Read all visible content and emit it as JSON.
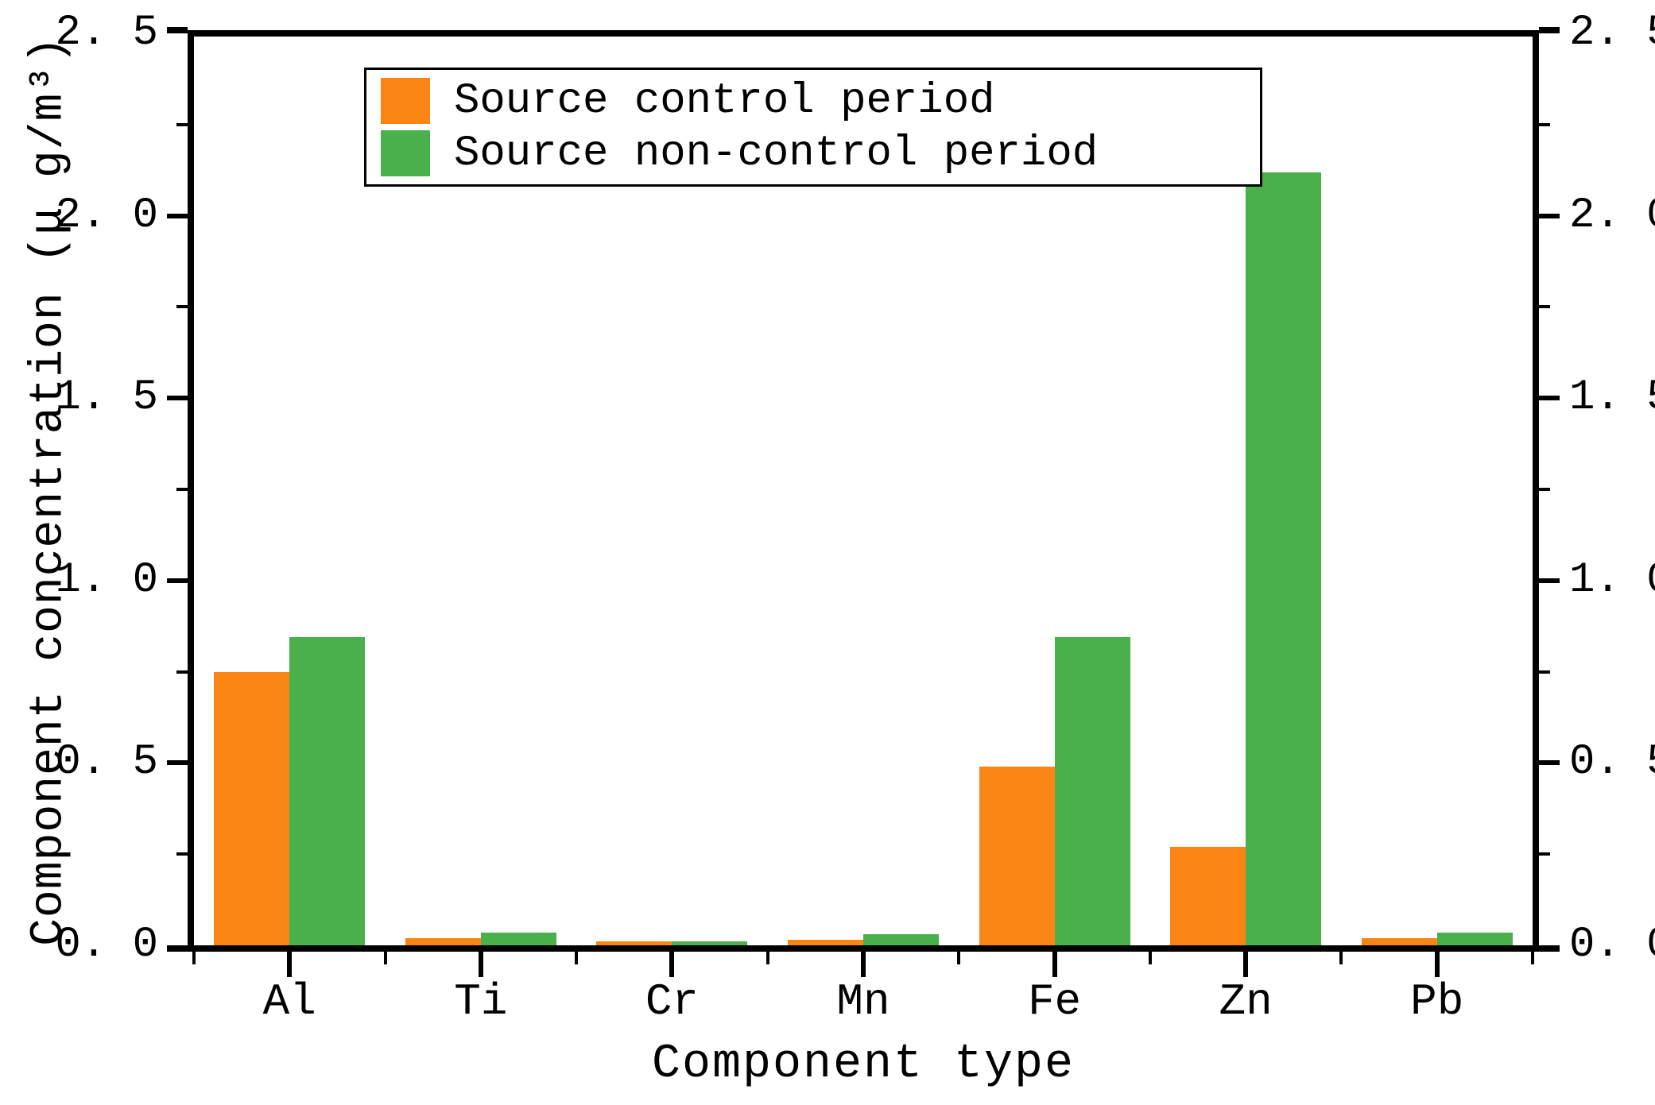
{
  "figure": {
    "background": "#ffffff",
    "axes_color": "#000000",
    "text_color": "#000000"
  },
  "chart_data": {
    "type": "bar",
    "title": "",
    "xlabel": "Component type",
    "ylabel": "Component concentration (μ g/m³)",
    "categories": [
      "Al",
      "Ti",
      "Cr",
      "Mn",
      "Fe",
      "Zn",
      "Pb"
    ],
    "series": [
      {
        "name": "Source control period",
        "color": "#FA8514",
        "values": [
          0.75,
          0.02,
          0.01,
          0.015,
          0.49,
          0.27,
          0.02
        ]
      },
      {
        "name": "Source non-control period",
        "color": "#4AB04C",
        "values": [
          0.845,
          0.035,
          0.012,
          0.03,
          0.845,
          2.12,
          0.035
        ]
      }
    ],
    "ylim": [
      0,
      2.5
    ],
    "ytick_major": [
      0,
      0.5,
      1.0,
      1.5,
      2.0,
      2.5
    ],
    "ytick_labels": [
      "0. 0",
      "0. 5",
      "1. 0",
      "1. 5",
      "2. 0",
      "2. 5"
    ],
    "ytick_minor": [
      0.25,
      0.75,
      1.25,
      1.75,
      2.25
    ],
    "y_axis_sides": "both",
    "grid": false,
    "legend_position": "upper-left-inside"
  }
}
